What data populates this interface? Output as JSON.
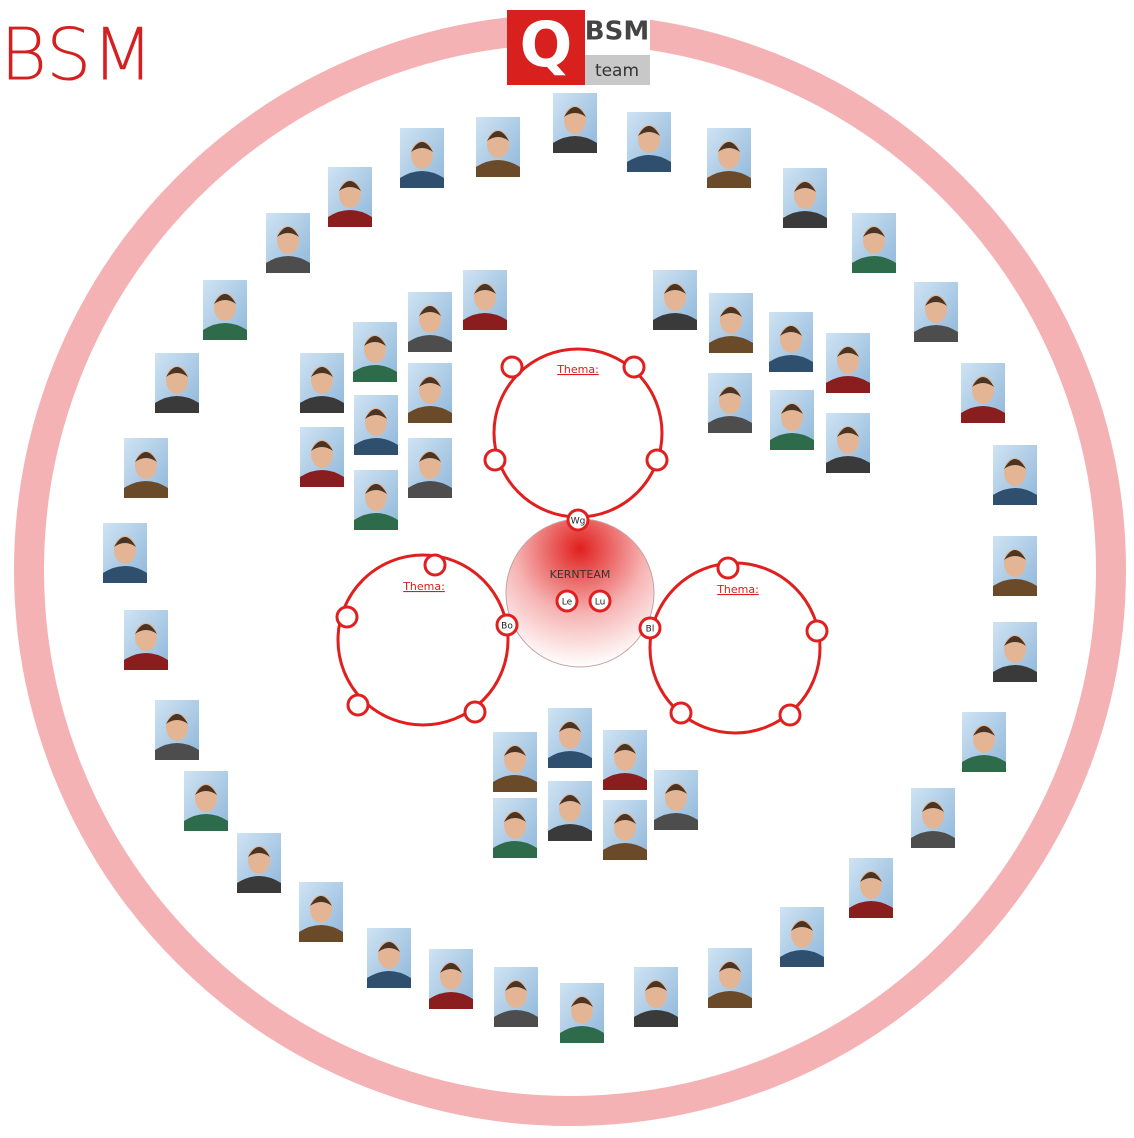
{
  "header": {
    "title": "BSM"
  },
  "logo": {
    "letter": "Q",
    "brand": "BSM",
    "subtitle": "team"
  },
  "core": {
    "label": "KERNTEAM",
    "members": [
      "Le",
      "Lu"
    ]
  },
  "groups": [
    {
      "title": "Thema:",
      "link": "Wg"
    },
    {
      "title": "Thema:",
      "link": "Bo"
    },
    {
      "title": "Thema:",
      "link": "Bl"
    }
  ]
}
